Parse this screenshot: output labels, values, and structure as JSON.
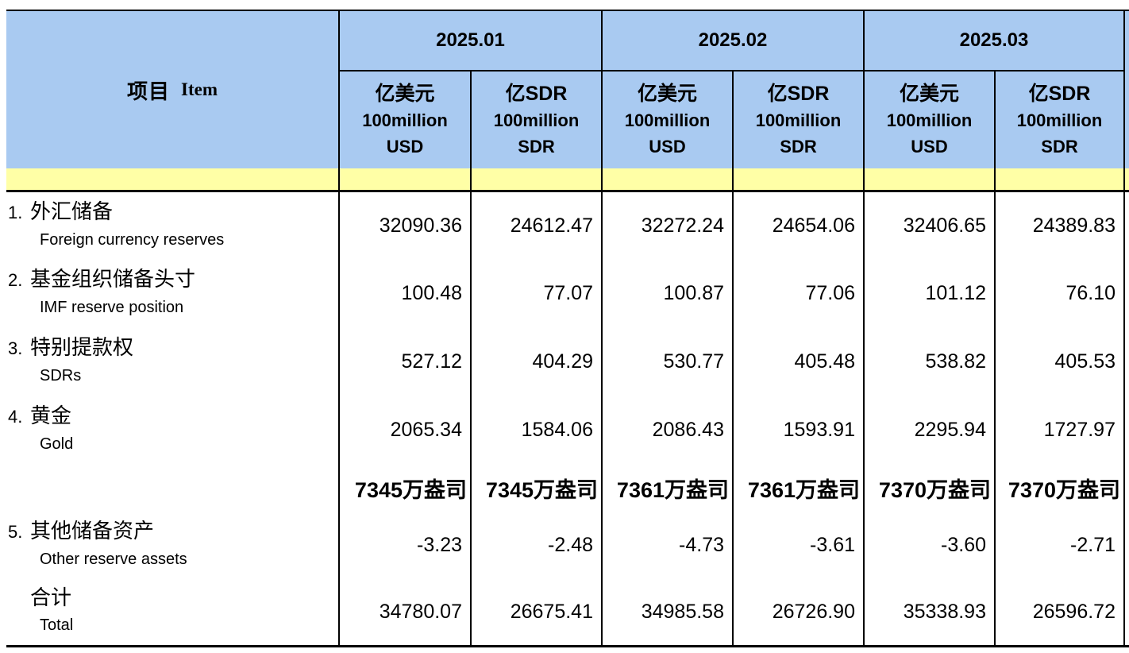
{
  "table": {
    "item_header_zh": "项目",
    "item_header_en": "Item",
    "periods": [
      "2025.01",
      "2025.02",
      "2025.03"
    ],
    "unit_usd": {
      "zh": "亿美元",
      "line2": "100million",
      "line3": "USD"
    },
    "unit_sdr": {
      "zh": "亿SDR",
      "line2": "100million",
      "line3": "SDR"
    },
    "colors": {
      "header_blue": "#a9caf1",
      "band_yellow": "#ffffa6",
      "line_black": "#000000"
    },
    "rows": [
      {
        "no": "1.",
        "zh": "外汇储备",
        "en": "Foreign currency reserves",
        "values": [
          "32090.36",
          "24612.47",
          "32272.24",
          "24654.06",
          "32406.65",
          "24389.83"
        ]
      },
      {
        "no": "2.",
        "zh": "基金组织储备头寸",
        "en": "IMF reserve position",
        "values": [
          "100.48",
          "77.07",
          "100.87",
          "77.06",
          "101.12",
          "76.10"
        ]
      },
      {
        "no": "3.",
        "zh": "特别提款权",
        "en": "SDRs",
        "values": [
          "527.12",
          "404.29",
          "530.77",
          "405.48",
          "538.82",
          "405.53"
        ]
      },
      {
        "no": "4.",
        "zh": "黄金",
        "en": "Gold",
        "values": [
          "2065.34",
          "1584.06",
          "2086.43",
          "1593.91",
          "2295.94",
          "1727.97"
        ]
      },
      {
        "no": "",
        "zh": "",
        "en": "",
        "values": [
          "7345万盎司",
          "7345万盎司",
          "7361万盎司",
          "7361万盎司",
          "7370万盎司",
          "7370万盎司"
        ]
      },
      {
        "no": "5.",
        "zh": "其他储备资产",
        "en": "Other reserve assets",
        "values": [
          "-3.23",
          "-2.48",
          "-4.73",
          "-3.61",
          "-3.60",
          "-2.71"
        ]
      },
      {
        "no": "",
        "zh": "合计",
        "en": "Total",
        "values": [
          "34780.07",
          "26675.41",
          "34985.58",
          "26726.90",
          "35338.93",
          "26596.72"
        ]
      }
    ]
  }
}
